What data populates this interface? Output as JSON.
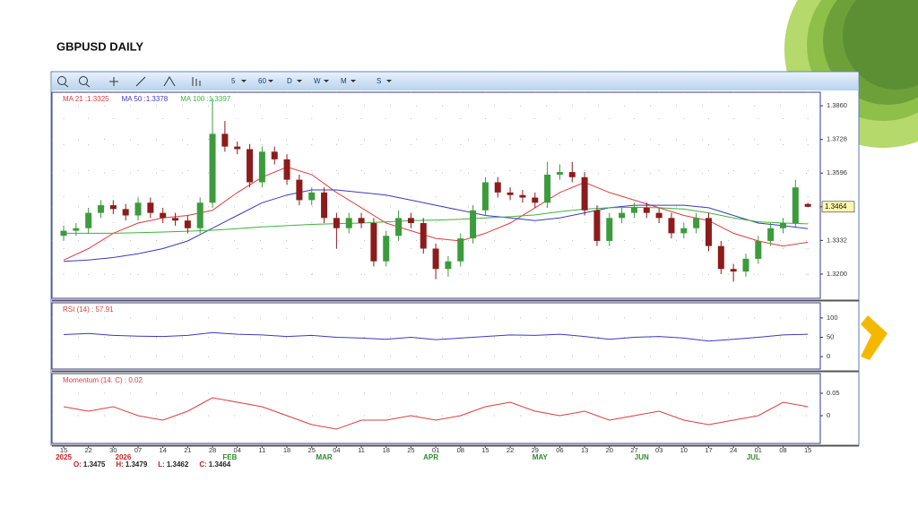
{
  "title": "GBPUSD DAILY",
  "toolbar": [
    "5",
    "60",
    "D",
    "W",
    "M",
    "S"
  ],
  "ohlc": [
    {
      "label": "O:",
      "value": 1.3475
    },
    {
      "label": "H:",
      "value": 1.3479
    },
    {
      "label": "L:",
      "value": 1.3462
    },
    {
      "label": "C:",
      "value": 1.3464
    }
  ],
  "chart_data": [
    {
      "type": "candlestick",
      "up_color": "#3c9b3c",
      "down_color": "#8c1c1c",
      "grid": true,
      "xlim": [
        -0.47,
        30.5
      ],
      "xticks": [
        {
          "value": 0,
          "label": "15"
        },
        {
          "value": 1,
          "label": "22"
        },
        {
          "value": 2,
          "label": "30"
        },
        {
          "value": 3,
          "label": "07"
        },
        {
          "value": 4,
          "label": "14"
        },
        {
          "value": 5,
          "label": "21"
        },
        {
          "value": 6,
          "label": "28"
        },
        {
          "value": 7,
          "label": "04"
        },
        {
          "value": 8,
          "label": "11"
        },
        {
          "value": 9,
          "label": "18"
        },
        {
          "value": 10,
          "label": "25"
        },
        {
          "value": 11,
          "label": "04"
        },
        {
          "value": 12,
          "label": "11"
        },
        {
          "value": 13,
          "label": "18"
        },
        {
          "value": 14,
          "label": "25"
        },
        {
          "value": 15,
          "label": "01"
        },
        {
          "value": 16,
          "label": "08"
        },
        {
          "value": 17,
          "label": "15"
        },
        {
          "value": 18,
          "label": "22"
        },
        {
          "value": 19,
          "label": "29"
        },
        {
          "value": 20,
          "label": "06"
        },
        {
          "value": 21,
          "label": "13"
        },
        {
          "value": 22,
          "label": "20"
        },
        {
          "value": 23,
          "label": "27"
        },
        {
          "value": 24,
          "label": "03"
        },
        {
          "value": 25,
          "label": "10"
        },
        {
          "value": 26,
          "label": "17"
        },
        {
          "value": 27,
          "label": "24"
        },
        {
          "value": 28,
          "label": "01"
        },
        {
          "value": 29,
          "label": "08"
        },
        {
          "value": 30,
          "label": "15"
        }
      ],
      "period_labels": [
        {
          "value": 0,
          "label": "2025",
          "color": "#d02020"
        },
        {
          "value": 2.4,
          "label": "2026",
          "color": "#d02020"
        },
        {
          "value": 6.7,
          "label": "FEB",
          "color": "#2e8b2e"
        },
        {
          "value": 10.5,
          "label": "MAR",
          "color": "#2e8b2e"
        },
        {
          "value": 14.8,
          "label": "APR",
          "color": "#2e8b2e"
        },
        {
          "value": 19.2,
          "label": "MAY",
          "color": "#2e8b2e"
        },
        {
          "value": 23.3,
          "label": "JUN",
          "color": "#2e8b2e"
        },
        {
          "value": 27.8,
          "label": "JUL",
          "color": "#2e8b2e"
        }
      ],
      "ylim": [
        1.3105,
        1.3913
      ],
      "yticks": [
        {
          "value": 1.386,
          "label": "1.3860"
        },
        {
          "value": 1.3728,
          "label": "1.3728"
        },
        {
          "value": 1.3596,
          "label": "1.3596"
        },
        {
          "value": 1.3464,
          "label": "1.3464"
        },
        {
          "value": 1.3332,
          "label": "1.3332"
        },
        {
          "value": 1.32,
          "label": "1.3200"
        }
      ],
      "x": [
        0,
        0.5,
        1,
        1.5,
        2,
        2.5,
        3,
        3.5,
        4,
        4.5,
        5,
        5.5,
        6,
        6.5,
        7,
        7.5,
        8,
        8.5,
        9,
        9.5,
        10,
        10.5,
        11,
        11.5,
        12,
        12.5,
        13,
        13.5,
        14,
        14.5,
        15,
        15.5,
        16,
        16.5,
        17,
        17.5,
        18,
        18.5,
        19,
        19.5,
        20,
        20.5,
        21,
        21.5,
        22,
        22.5,
        23,
        23.5,
        24,
        24.5,
        25,
        25.5,
        26,
        26.5,
        27,
        27.5,
        28,
        28.5,
        29,
        29.5,
        30
      ],
      "open": [
        1.335,
        1.337,
        1.338,
        1.344,
        1.347,
        1.3455,
        1.343,
        1.348,
        1.344,
        1.342,
        1.341,
        1.338,
        1.348,
        1.375,
        1.37,
        1.369,
        1.356,
        1.368,
        1.365,
        1.357,
        1.349,
        1.352,
        1.342,
        1.338,
        1.342,
        1.34,
        1.325,
        1.335,
        1.342,
        1.34,
        1.33,
        1.322,
        1.325,
        1.334,
        1.345,
        1.356,
        1.352,
        1.351,
        1.35,
        1.348,
        1.359,
        1.36,
        1.358,
        1.345,
        1.333,
        1.342,
        1.344,
        1.346,
        1.344,
        1.342,
        1.336,
        1.338,
        1.342,
        1.331,
        1.322,
        1.321,
        1.326,
        1.333,
        1.338,
        1.34,
        1.3475
      ],
      "high": [
        1.339,
        1.34,
        1.346,
        1.349,
        1.349,
        1.3475,
        1.35,
        1.35,
        1.346,
        1.344,
        1.343,
        1.35,
        1.389,
        1.38,
        1.372,
        1.371,
        1.37,
        1.37,
        1.367,
        1.359,
        1.354,
        1.354,
        1.344,
        1.344,
        1.344,
        1.342,
        1.337,
        1.345,
        1.344,
        1.342,
        1.332,
        1.327,
        1.336,
        1.347,
        1.358,
        1.358,
        1.354,
        1.353,
        1.352,
        1.364,
        1.363,
        1.364,
        1.36,
        1.347,
        1.344,
        1.346,
        1.348,
        1.348,
        1.346,
        1.344,
        1.34,
        1.344,
        1.344,
        1.333,
        1.324,
        1.328,
        1.335,
        1.34,
        1.342,
        1.357,
        1.3479
      ],
      "low": [
        1.333,
        1.335,
        1.336,
        1.342,
        1.3435,
        1.341,
        1.341,
        1.342,
        1.34,
        1.339,
        1.336,
        1.336,
        1.346,
        1.368,
        1.367,
        1.354,
        1.354,
        1.363,
        1.355,
        1.347,
        1.347,
        1.34,
        1.33,
        1.336,
        1.338,
        1.323,
        1.323,
        1.333,
        1.338,
        1.328,
        1.318,
        1.319,
        1.323,
        1.332,
        1.343,
        1.35,
        1.349,
        1.348,
        1.346,
        1.346,
        1.357,
        1.356,
        1.343,
        1.331,
        1.331,
        1.34,
        1.342,
        1.342,
        1.34,
        1.334,
        1.334,
        1.336,
        1.329,
        1.32,
        1.317,
        1.319,
        1.324,
        1.331,
        1.336,
        1.338,
        1.3462
      ],
      "close": [
        1.337,
        1.338,
        1.344,
        1.347,
        1.3455,
        1.343,
        1.348,
        1.344,
        1.342,
        1.341,
        1.338,
        1.348,
        1.375,
        1.37,
        1.369,
        1.356,
        1.368,
        1.365,
        1.357,
        1.349,
        1.352,
        1.342,
        1.338,
        1.342,
        1.34,
        1.325,
        1.335,
        1.342,
        1.34,
        1.33,
        1.322,
        1.325,
        1.334,
        1.345,
        1.356,
        1.352,
        1.351,
        1.35,
        1.348,
        1.359,
        1.36,
        1.358,
        1.345,
        1.333,
        1.342,
        1.344,
        1.346,
        1.344,
        1.342,
        1.336,
        1.338,
        1.342,
        1.331,
        1.322,
        1.321,
        1.326,
        1.333,
        1.338,
        1.34,
        1.354,
        1.3464
      ],
      "series": [
        {
          "name": "MA 21 :1.3325",
          "color": "#e03c3c",
          "x": [
            0,
            1,
            2,
            3,
            4,
            5,
            6,
            7,
            8,
            9,
            10,
            11,
            12,
            13,
            14,
            15,
            16,
            17,
            18,
            19,
            20,
            21,
            22,
            23,
            24,
            25,
            26,
            27,
            28,
            29,
            30
          ],
          "values": [
            1.3255,
            1.33,
            1.336,
            1.34,
            1.342,
            1.343,
            1.345,
            1.352,
            1.358,
            1.362,
            1.359,
            1.352,
            1.346,
            1.34,
            1.337,
            1.334,
            1.333,
            1.336,
            1.34,
            1.346,
            1.352,
            1.356,
            1.352,
            1.349,
            1.346,
            1.343,
            1.341,
            1.336,
            1.333,
            1.331,
            1.3325
          ]
        },
        {
          "name": "MA 50 :1.3378",
          "color": "#3a3ac0",
          "x": [
            0,
            1,
            2,
            3,
            4,
            5,
            6,
            7,
            8,
            9,
            10,
            11,
            12,
            13,
            14,
            15,
            16,
            17,
            18,
            19,
            20,
            21,
            22,
            23,
            24,
            25,
            26,
            27,
            28,
            29,
            30
          ],
          "values": [
            1.325,
            1.3255,
            1.3265,
            1.328,
            1.33,
            1.333,
            1.338,
            1.343,
            1.348,
            1.351,
            1.353,
            1.353,
            1.352,
            1.351,
            1.349,
            1.347,
            1.345,
            1.343,
            1.342,
            1.341,
            1.342,
            1.344,
            1.346,
            1.347,
            1.347,
            1.347,
            1.346,
            1.343,
            1.34,
            1.339,
            1.3378
          ]
        },
        {
          "name": "MA 100 :1.3397",
          "color": "#3cb43c",
          "x": [
            0,
            1,
            2,
            3,
            4,
            5,
            6,
            7,
            8,
            9,
            10,
            11,
            12,
            13,
            14,
            15,
            16,
            17,
            18,
            19,
            20,
            21,
            22,
            23,
            24,
            25,
            26,
            27,
            28,
            29,
            30
          ],
          "values": [
            1.336,
            1.336,
            1.336,
            1.3362,
            1.3365,
            1.3368,
            1.3372,
            1.3378,
            1.3385,
            1.339,
            1.3395,
            1.3398,
            1.34,
            1.3405,
            1.341,
            1.3412,
            1.3415,
            1.342,
            1.3425,
            1.3432,
            1.3445,
            1.3455,
            1.346,
            1.3462,
            1.346,
            1.3455,
            1.344,
            1.342,
            1.3405,
            1.34,
            1.3397
          ]
        }
      ]
    },
    {
      "type": "line",
      "label": "RSI (14) : 57.91",
      "color": "#3a3ac0",
      "xlim": [
        -0.47,
        30.5
      ],
      "ylim": [
        -32,
        139
      ],
      "yticks": [
        0,
        50,
        100
      ],
      "grid": true,
      "x": [
        0,
        1,
        2,
        3,
        4,
        5,
        6,
        7,
        8,
        9,
        10,
        11,
        12,
        13,
        14,
        15,
        16,
        17,
        18,
        19,
        20,
        21,
        22,
        23,
        24,
        25,
        26,
        27,
        28,
        29,
        30
      ],
      "values": [
        57,
        60,
        55,
        53,
        52,
        55,
        62,
        58,
        56,
        52,
        55,
        50,
        48,
        45,
        50,
        44,
        48,
        52,
        56,
        55,
        58,
        52,
        45,
        50,
        52,
        48,
        40,
        45,
        50,
        56,
        58
      ]
    },
    {
      "type": "line",
      "label": "Momentum (14. C) : 0.02",
      "color": "#e03c3c",
      "xlim": [
        -0.47,
        30.5
      ],
      "ylim": [
        -0.062,
        0.094
      ],
      "yticks": [
        0,
        0.05
      ],
      "grid": true,
      "x": [
        0,
        1,
        2,
        3,
        4,
        5,
        6,
        7,
        8,
        9,
        10,
        11,
        12,
        13,
        14,
        15,
        16,
        17,
        18,
        19,
        20,
        21,
        22,
        23,
        24,
        25,
        26,
        27,
        28,
        29,
        30
      ],
      "values": [
        0.02,
        0.01,
        0.02,
        0,
        -0.01,
        0.01,
        0.04,
        0.03,
        0.02,
        0,
        -0.02,
        -0.03,
        -0.01,
        -0.01,
        0,
        -0.01,
        0,
        0.02,
        0.03,
        0.01,
        0,
        0.01,
        -0.01,
        0,
        0.01,
        -0.01,
        -0.02,
        -0.01,
        0,
        0.03,
        0.02
      ]
    }
  ]
}
